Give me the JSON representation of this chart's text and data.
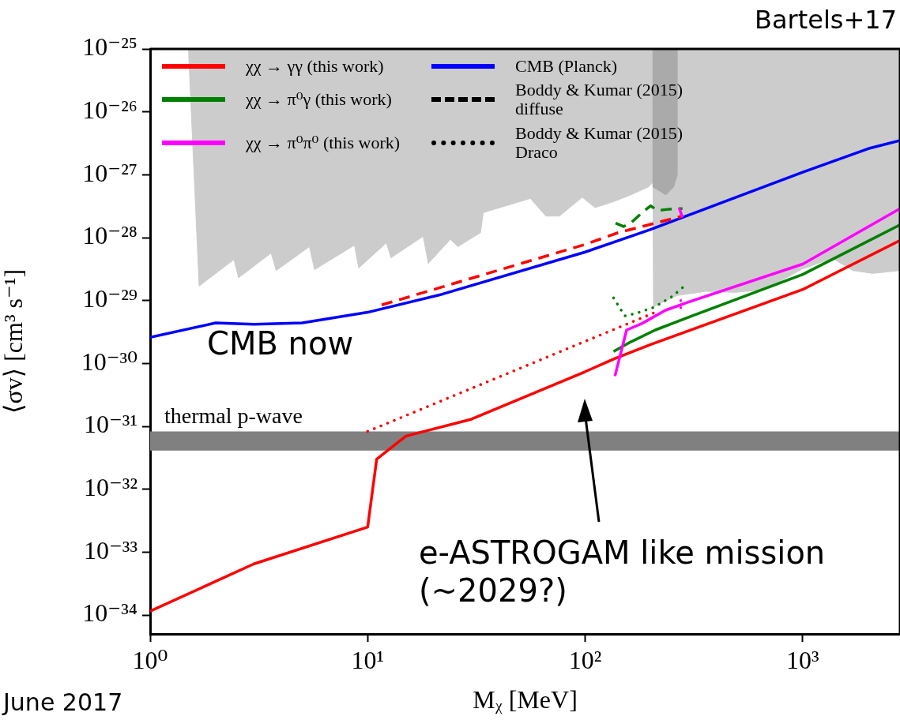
{
  "chart_data": {
    "type": "line",
    "xlabel": "Mᵪ [MeV]",
    "ylabel": "⟨σv⟩ [cm³ s⁻¹]",
    "log": "xy",
    "grid": false,
    "legend": "top",
    "xlim": [
      1,
      2800
    ],
    "ylim": [
      5e-35,
      1e-25
    ],
    "xticks": [
      {
        "value": 1,
        "label": "10⁰"
      },
      {
        "value": 10,
        "label": "10¹"
      },
      {
        "value": 100,
        "label": "10²"
      },
      {
        "value": 1000,
        "label": "10³"
      }
    ],
    "yticks": [
      {
        "value": 1e-34,
        "label": "10⁻³⁴"
      },
      {
        "value": 1e-33,
        "label": "10⁻³³"
      },
      {
        "value": 1e-32,
        "label": "10⁻³²"
      },
      {
        "value": 1e-31,
        "label": "10⁻³¹"
      },
      {
        "value": 1e-30,
        "label": "10⁻³⁰"
      },
      {
        "value": 1e-29,
        "label": "10⁻²⁹"
      },
      {
        "value": 1e-28,
        "label": "10⁻²⁸"
      },
      {
        "value": 1e-27,
        "label": "10⁻²⁷"
      },
      {
        "value": 1e-26,
        "label": "10⁻²⁶"
      },
      {
        "value": 1e-25,
        "label": "10⁻²⁵"
      }
    ],
    "bands": [
      {
        "axis": "y",
        "from": 4.1e-32,
        "to": 8.3e-32,
        "label": "thermal p-wave",
        "color": "#808080"
      }
    ],
    "annotations": [
      "Bartels+17",
      "CMB now",
      "e-ASTROGAM like mission (~2029?)",
      "June 2017"
    ],
    "series": [
      {
        "type": "area",
        "color": "#cccccc",
        "x": [
          1.5,
          1.68,
          2.43,
          2.55,
          3.6,
          3.8,
          5.4,
          5.7,
          8.7,
          9.1,
          12.2,
          12.8,
          18,
          19,
          24,
          26,
          33,
          34,
          56,
          66,
          76,
          97,
          111,
          134,
          160,
          195,
          205,
          206,
          264,
          360,
          490,
          670,
          1000,
          1370,
          1700,
          2100,
          2800,
          2800
        ],
        "values": [
          1e-25,
          1.7e-29,
          4.5e-29,
          2.3e-29,
          5.7e-29,
          3e-29,
          7.2e-29,
          3.1e-29,
          7.6e-29,
          3.3e-29,
          8.3e-29,
          4.8e-29,
          1.05e-28,
          3.9e-29,
          9.4e-29,
          7.2e-29,
          1.2e-28,
          2.5e-28,
          4.2e-28,
          2.2e-28,
          2.2e-28,
          4.4e-28,
          3e-28,
          3.7e-28,
          4.7e-28,
          6.4e-28,
          7.6e-28,
          8e-30,
          1.2e-29,
          1.4e-29,
          1.35e-29,
          1.5e-29,
          3.2e-29,
          4.7e-29,
          3e-29,
          2.7e-29,
          3e-29,
          1e-25
        ]
      },
      {
        "type": "area",
        "color": "#aaaaaa",
        "x": [
          205,
          205,
          235,
          255,
          265,
          265
        ],
        "values": [
          1e-25,
          6.4e-28,
          4.8e-28,
          6.4e-28,
          1e-27,
          1e-25
        ]
      },
      {
        "name": "χχ → γγ (this work)",
        "color": "#ff0000",
        "line_style": "solid",
        "x": [
          1,
          3,
          10,
          11,
          15,
          30,
          100,
          137,
          200,
          1000,
          2800
        ],
        "values": [
          1.15e-34,
          6.5e-34,
          2.5e-33,
          3e-32,
          7e-32,
          1.3e-31,
          7.4e-31,
          1.2e-30,
          2e-30,
          1.5e-29,
          9e-29
        ]
      },
      {
        "name": "χχ → π⁰γ (this work)",
        "color": "#008000",
        "line_style": "solid",
        "x": [
          135,
          162,
          210,
          310,
          1000,
          2800
        ],
        "values": [
          1.55e-30,
          2.2e-30,
          3.4e-30,
          5.7e-30,
          2.6e-29,
          1.6e-28
        ]
      },
      {
        "name": "χχ → π⁰π⁰ (this work)",
        "color": "#ff00ff",
        "line_style": "solid",
        "x": [
          137,
          155,
          182,
          234,
          300,
          1000,
          2800
        ],
        "values": [
          6.3e-31,
          3.4e-30,
          4.3e-30,
          7e-30,
          9.5e-30,
          3.8e-29,
          2.9e-28
        ]
      },
      {
        "name": "CMB (Planck)",
        "color": "#0000ff",
        "line_style": "solid",
        "x": [
          1,
          2,
          3,
          5,
          10,
          22,
          100,
          200,
          1000,
          2000,
          2800
        ],
        "values": [
          2.6e-30,
          4.4e-30,
          4.2e-30,
          4.4e-30,
          6.5e-30,
          1.26e-29,
          5.9e-29,
          1.35e-28,
          1.1e-27,
          2.6e-27,
          3.5e-27
        ]
      },
      {
        "name": "Boddy & Kumar (2015) diffuse",
        "color": "#000000",
        "line_style": "dashed"
      },
      {
        "name": "Boddy & Kumar (2015) Draco",
        "color": "#000000",
        "line_style": "dotted"
      },
      {
        "color": "#ff0000",
        "line_style": "dashed",
        "x": [
          11.6,
          100,
          142,
          280
        ],
        "values": [
          8.5e-30,
          7.8e-29,
          1.2e-28,
          2.2e-28
        ]
      },
      {
        "color": "#008000",
        "line_style": "dashed",
        "x": [
          138,
          150,
          162,
          185,
          200,
          215,
          235,
          260,
          280
        ],
        "values": [
          1.7e-28,
          1.5e-28,
          1.7e-28,
          2.6e-28,
          3.2e-28,
          2.7e-28,
          2.8e-28,
          2.9e-28,
          2.9e-28
        ]
      },
      {
        "color": "#ff00ff",
        "line_style": "dashed",
        "x": [
          270,
          280
        ],
        "values": [
          3e-28,
          2.1e-28
        ]
      },
      {
        "color": "#ff0000",
        "line_style": "dotted",
        "x": [
          10,
          210
        ],
        "values": [
          8.3e-32,
          6.5e-30
        ]
      },
      {
        "color": "#008000",
        "line_style": "dotted",
        "x": [
          135,
          152,
          170,
          207,
          250,
          280
        ],
        "values": [
          1.1e-29,
          5.7e-30,
          6.2e-30,
          7.8e-30,
          1.15e-29,
          1.6e-29
        ]
      },
      {
        "color": "#ff00ff",
        "line_style": "dotted",
        "x": [
          275,
          275
        ],
        "values": [
          1e-29,
          6.6e-30
        ]
      }
    ]
  }
}
